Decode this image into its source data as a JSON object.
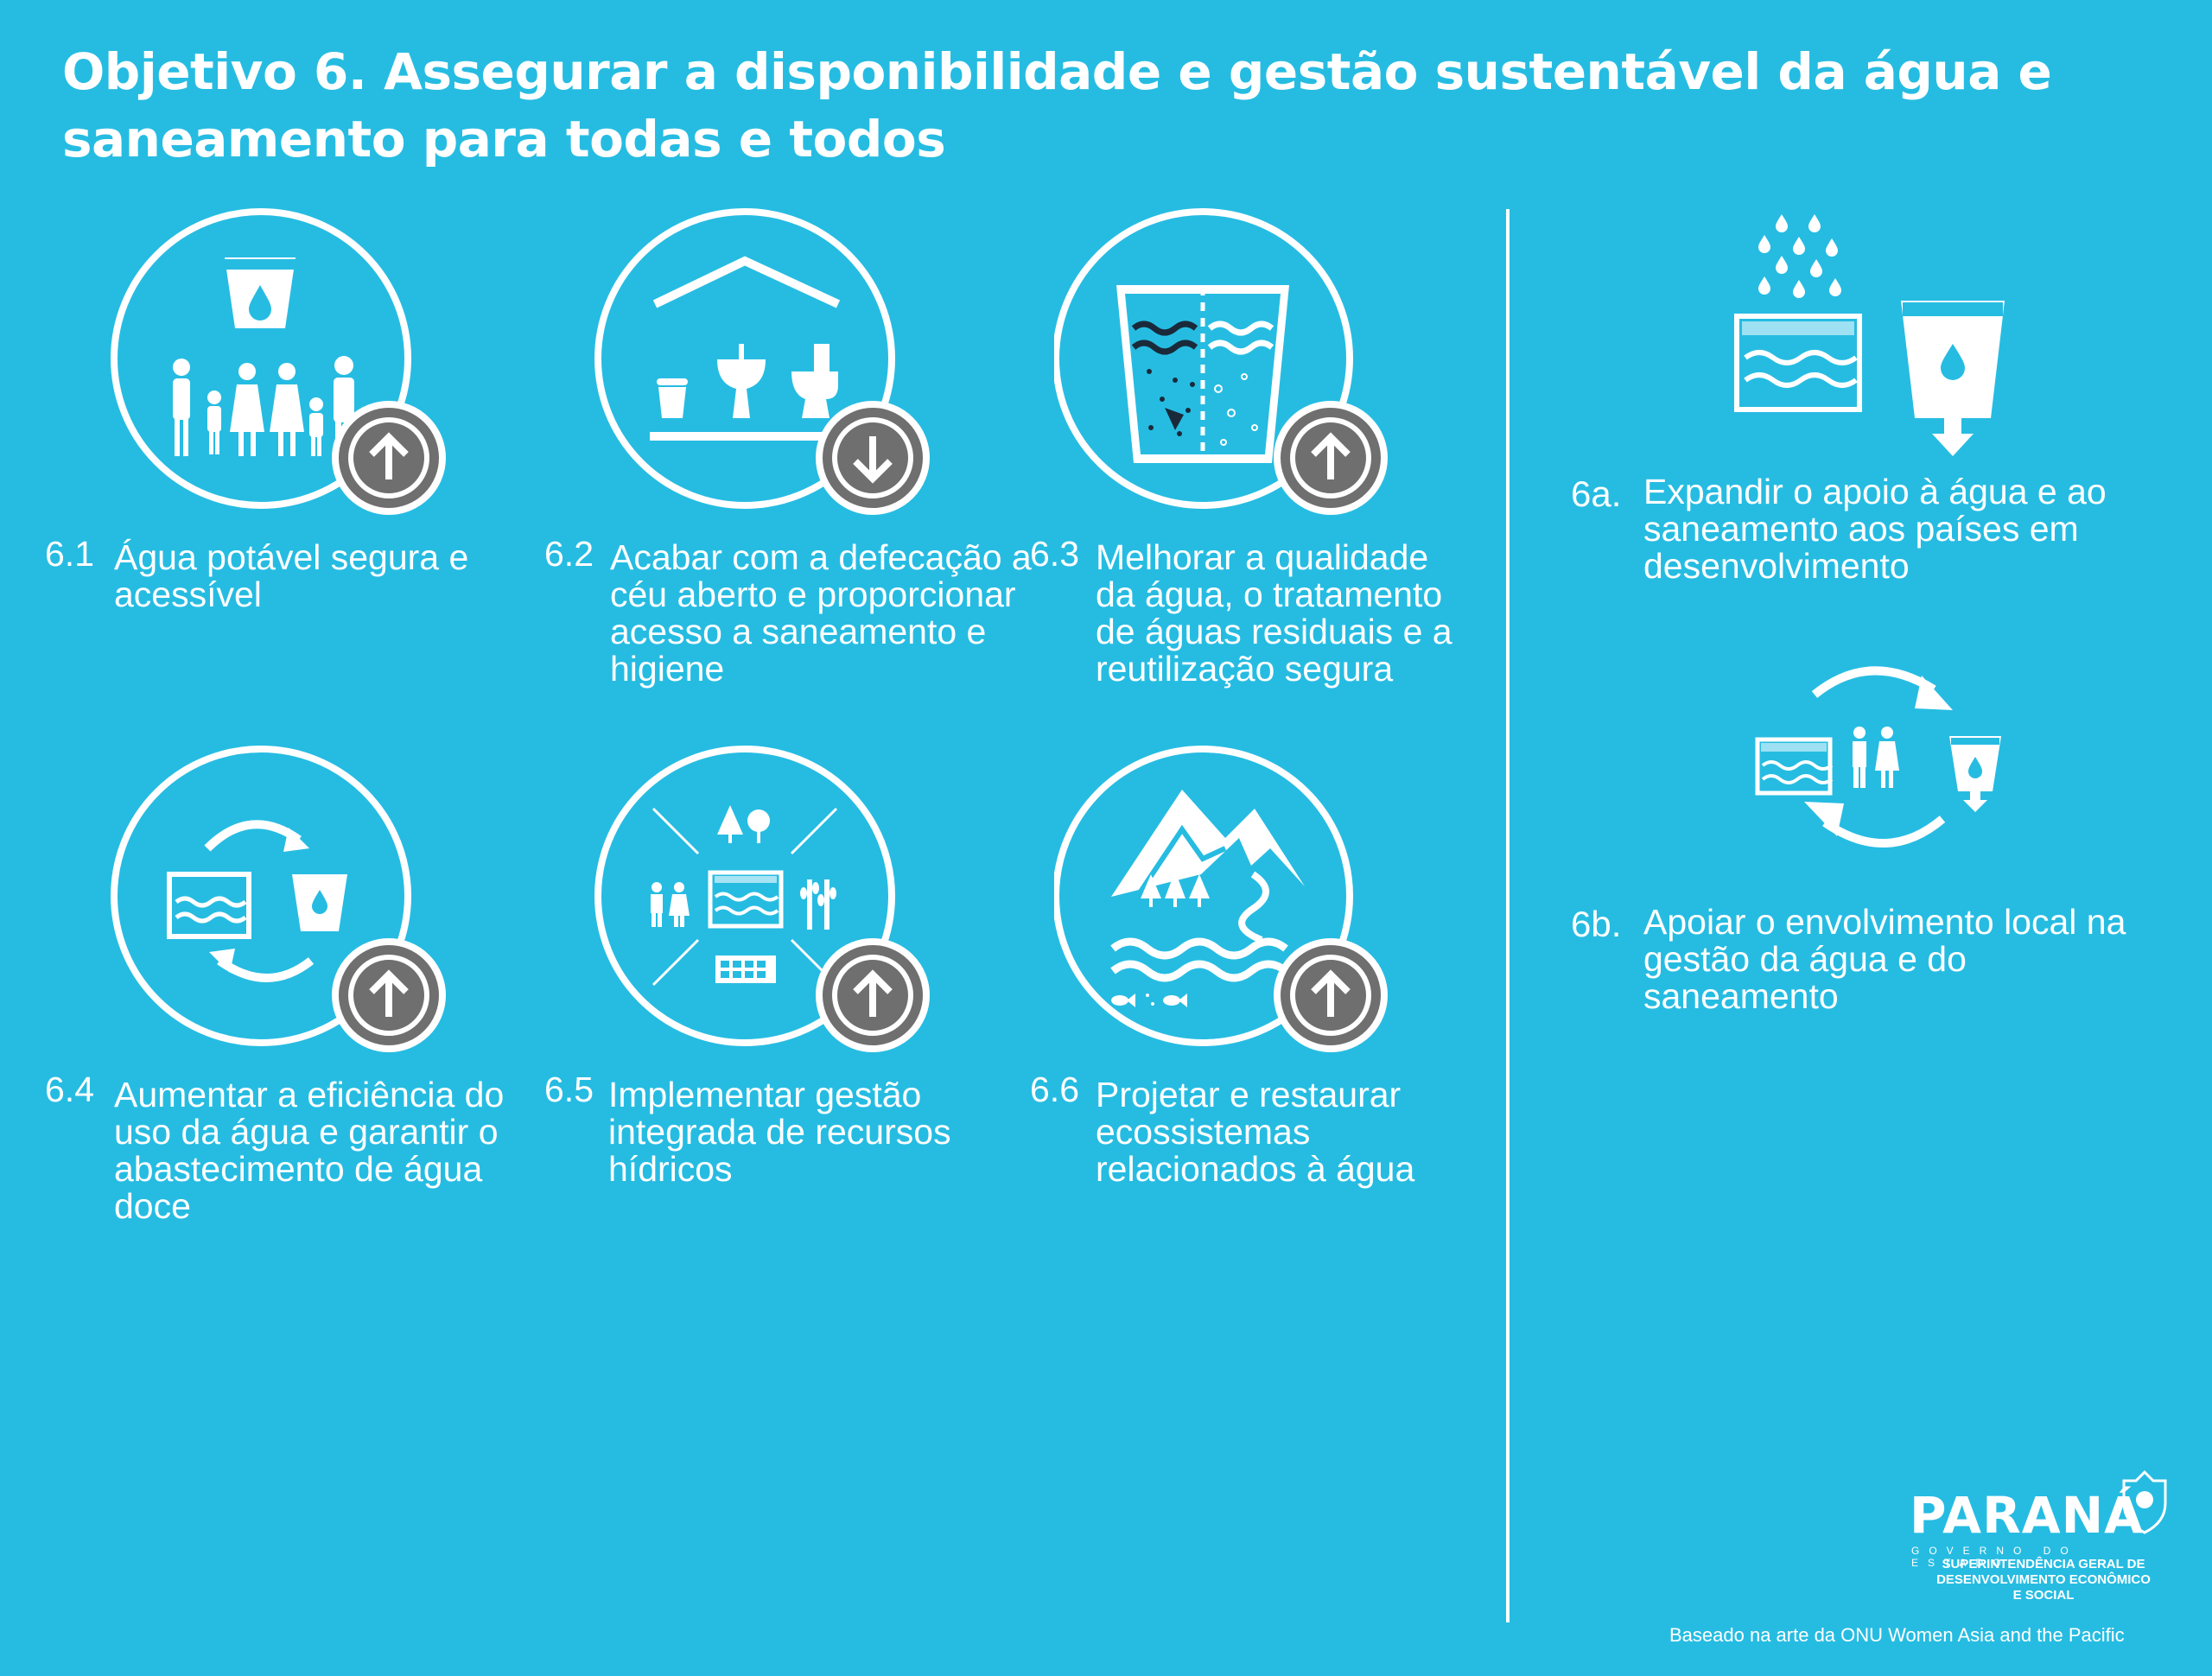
{
  "title": "Objetivo 6. Assegurar a disponibilidade e gestão sustentável da água e saneamento para todas e todos",
  "targets": [
    {
      "number": "6.1",
      "text": "Água potável segura e acessível",
      "trend": "up",
      "icon": "water-cup-family-icon"
    },
    {
      "number": "6.2",
      "text": "Acabar com a defecação a céu aberto e proporcionar acesso a saneamento e higiene",
      "trend": "down",
      "icon": "sanitation-house-icon"
    },
    {
      "number": "6.3",
      "text": "Melhorar a qualidade da água, o tratamento de águas residuais e a reutilização segura",
      "trend": "up",
      "icon": "water-treatment-glass-icon"
    },
    {
      "number": "6.4",
      "text": "Aumentar a eficiência do uso da água e garantir o abastecimento de água doce",
      "trend": "up",
      "icon": "water-cycle-icon"
    },
    {
      "number": "6.5",
      "text": "Implementar gestão integrada de recursos hídricos",
      "trend": "up",
      "icon": "integrated-resources-icon"
    },
    {
      "number": "6.6",
      "text": "Projetar e restaurar ecossistemas relacionados à água",
      "trend": "up",
      "icon": "mountain-ecosystem-icon"
    }
  ],
  "side": [
    {
      "number": "6a.",
      "text": "Expandir o apoio à água e ao saneamento aos países em desenvolvimento",
      "icon": "rain-water-support-icon"
    },
    {
      "number": "6b.",
      "text": "Apoiar o envolvimento local na gestão da água e do saneamento",
      "icon": "community-water-cycle-icon"
    }
  ],
  "logo": {
    "name": "PARANÁ",
    "gov": "GOVERNO DO ESTADO",
    "sub": "SUPERINTENDÊNCIA GERAL DE DESENVOLVIMENTO ECONÔMICO E SOCIAL"
  },
  "credit": "Baseado na arte da ONU Women Asia and the Pacific",
  "colors": {
    "background": "#26bce2",
    "badge": "#6f6f6f",
    "foreground": "#ffffff",
    "dark": "#1a2a3a"
  }
}
